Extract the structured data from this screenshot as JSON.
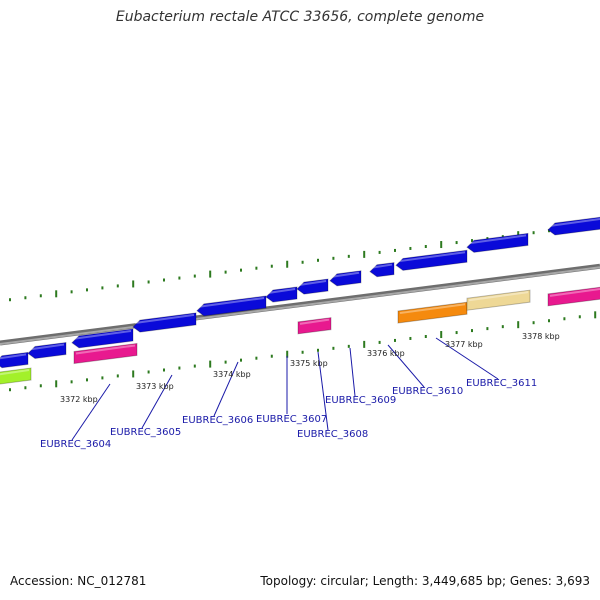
{
  "title": "Eubacterium rectale ATCC 33656, complete genome",
  "footer": {
    "accession": "Accession: NC_012781",
    "stats": "Topology: circular; Length: 3,449,685 bp; Genes: 3,693"
  },
  "colors": {
    "background": "#ffffff",
    "backbone": "#8c8c8c",
    "cds_forward": "#0a0ad9",
    "cds_reverse": "#0a0ad9",
    "rna_magenta": "#e8198f",
    "orange": "#f58a0e",
    "khaki": "#eed896",
    "lime": "#a3f02a",
    "ticks": "#2d7a1f",
    "labels": "#1a1aa8"
  },
  "kbp_labels": [
    "3372 kbp",
    "3373 kbp",
    "3374 kbp",
    "3375 kbp",
    "3376 kbp",
    "3377 kbp",
    "3378 kbp"
  ],
  "gene_labels": [
    "EUBREC_3604",
    "EUBREC_3605",
    "EUBREC_3606",
    "EUBREC_3607",
    "EUBREC_3608",
    "EUBREC_3609",
    "EUBREC_3610",
    "EUBREC_3611"
  ]
}
